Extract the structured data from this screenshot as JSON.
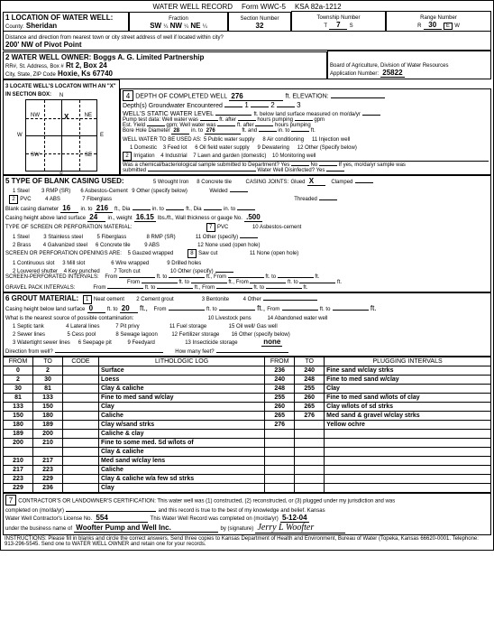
{
  "header": {
    "title": "WATER WELL RECORD",
    "form": "Form WWC-5",
    "ksa": "KSA 82a-1212"
  },
  "loc": {
    "seclabel": "1 LOCATION OF WATER WELL:",
    "countylabel": "County:",
    "county": "Sheridan",
    "fraction": "Fraction",
    "sw": "SW",
    "qtr": "¼",
    "nw": "NW",
    "ne": "NE",
    "secnum": "Section Number",
    "sec": "32",
    "twp": "Township Number",
    "twpT": "T",
    "twpval": "7",
    "twpS": "S",
    "rng": "Range Number",
    "rngR": "R",
    "rngval": "30",
    "ew": "E",
    "w": "W",
    "distlabel": "Distance and direction from nearest town or city street address of well if located within city?",
    "dist": "200' NW of Pivot Point"
  },
  "owner": {
    "hdr": "2 WATER WELL OWNER:",
    "name": "Boggs A. G. Limited Partnership",
    "addrlabel": "RR#, St. Address, Box #",
    "addr": "Rt 2, Box 24",
    "citylabel": "City, State, ZIP Code",
    "city": "Hoxie, Ks 67740",
    "board": "Board of Agriculture, Division of Water Resources",
    "appnum": "Application Number:",
    "app": "25822"
  },
  "loc3": {
    "hdr": "3 LOCATE WELL'S LOCATON WITH AN \"X\" IN SECTION BOX:",
    "n": "N",
    "s": "S",
    "e": "E",
    "wdir": "W",
    "nw": "NW",
    "ne": "NE",
    "sw": "SW",
    "se": "SE",
    "x": "X",
    "mile": "1 mile"
  },
  "sec4": {
    "hdr": "4",
    "depth": "DEPTH OF COMPLETED WELL",
    "depthval": "276",
    "elev": "ft. ELEVATION:",
    "gw": "Depth(s) Groundwater Encountered",
    "static": "WELL'S STATIC WATER LEVEL",
    "belowland": "ft. below land surface measured on mo/da/yr",
    "pump": "Pump test data:",
    "wellwater": "Well water was",
    "ftafter": "ft. after",
    "hours": "hours pumping",
    "gpm": "gpm",
    "est": "Est. Yield",
    "gpmlabel": "gpm;",
    "bore": "Bore Hole Diameter",
    "boreval1": "28",
    "into": "in. to",
    "boreval2": "276",
    "ftand": "ft. and",
    "ft": "ft.",
    "used": "WELL WATER TO BE USED AS:",
    "u1": "1  Domestic",
    "u3": "3  Feed lot",
    "u5": "5  Public water supply",
    "u6": "6  Oil field water supply",
    "u8": "8  Air conditioning",
    "u9": "9  Dewatering",
    "u11": "11  Injection well",
    "u12": "12  Other (Specify below)",
    "u2box": "2",
    "u2": "Irrigation",
    "u4": "4  Industrial",
    "u7": "7  Lawn and garden (domestic)",
    "u10": "10  Monitoring well",
    "chem": "Was a chemical/bacteriological sample submitted to Department?  Yes",
    "no": "No",
    "ifyes": "If yes, mo/da/yr sample was",
    "subm": "submitted",
    "disinfect": "Water Well Disinfected? Yes"
  },
  "sec5": {
    "hdr": "5 TYPE OF BLANK CASING USED:",
    "c1": "1  Steel",
    "c3": "3  RMP (SR)",
    "c5": "5  Wrought Iron",
    "c8": "8  Concrete tile",
    "cj": "CASING JOINTS:",
    "glued": "Glued",
    "gluedX": "X",
    "clamped": "Clamped",
    "c2box": "2",
    "c2": "PVC",
    "c4": "4  ABS",
    "c7": "7  Fiberglass",
    "c6": "6  Asbestos-Cement",
    "c9": "9  Other (specify below)",
    "welded": "Welded",
    "threaded": "Threaded",
    "bcd": "Blank casing diameter",
    "bcd1": "16",
    "bcd2": "216",
    "intoL": "in. to",
    "ftdia": "ft., Dia",
    "into2": "in. to",
    "ftdia2": "ft., Dia",
    "cheight": "Casing height above land surface",
    "cheightval": "24",
    "inweight": "in., weight",
    "weight": "16.15",
    "lbsft": "lbs./ft., Wall thickness or gauge No.",
    "gauge": ".500",
    "perf": "TYPE OF SCREEN OR PERFORATION MATERIAL:",
    "p7box": "7",
    "p7": "PVC",
    "p1": "1  Steel",
    "p3": "3  Stainless steel",
    "p5": "5  Fiberglass",
    "p8": "8  RMP (SR)",
    "p10": "10  Asbestos-cement",
    "p11": "11  Other (specify)",
    "p2": "2  Brass",
    "p4": "4  Galvanized steel",
    "p6": "6  Concrete tile",
    "p9": "9  ABS",
    "p12": "12  None used (open hole)",
    "open": "SCREEN OR PERFORATION OPENINGS ARE:",
    "o1": "1  Continuous slot",
    "o3": "3  Mill slot",
    "o5": "5  Gauzed wrapped",
    "o6": "6  Wire wrapped",
    "o8box": "8",
    "o8": "Saw cut",
    "o9": "9  Drilled holes",
    "o11": "11  None (open hole)",
    "o2": "2  Louvered shutter",
    "o4": "4  Key punched",
    "o7": "7  Torch cut",
    "o10": "10  Other (specify)",
    "spi": "SCREEN-PERFORATED INTERVALS:",
    "from": "From",
    "ftto": "ft. to",
    "ftfrom": "ft., From",
    "gpi": "GRAVEL PACK INTERVALS:"
  },
  "sec6": {
    "hdr": "6 GROUT MATERIAL:",
    "g1box": "1",
    "g1": "Neat cement",
    "g2": "2  Cement grout",
    "g3": "3  Bentonite",
    "g4": "4  Other",
    "chb": "Casing height below land surface",
    "zero": "0",
    "ftto": "ft. to",
    "twenty": "20",
    "contam": "What is the nearest source of possible contamination:",
    "n1": "1  Septic tank",
    "n4": "4  Lateral lines",
    "n7": "7  Pit privy",
    "n10": "10  Livestock pens",
    "n11": "11  Fuel storage",
    "n14": "14  Abandoned water well",
    "n15": "15  Oil well/ Gas well",
    "n2": "2  Sewer lines",
    "n5": "5  Cess pool",
    "n8": "8  Sewage lagoon",
    "n12": "12  Fertilizer storage",
    "n16": "16  Other (specify below)",
    "n3": "3  Watertight sewer lines",
    "n6": "6  Seepage pit",
    "n9": "9  Feedyard",
    "n13": "13  Insecticide storage",
    "none": "none",
    "dir": "Direction from well?",
    "howmany": "How many feet?"
  },
  "log": {
    "hdrs": {
      "from": "FROM",
      "to": "TO",
      "code": "CODE",
      "lith": "LITHOLOGIC LOG",
      "plug": "PLUGGING INTERVALS"
    },
    "rows": [
      {
        "a": "0",
        "b": "2",
        "lith": "Surface",
        "c": "236",
        "d": "240",
        "plug": "Fine sand w/clay strks"
      },
      {
        "a": "2",
        "b": "30",
        "lith": "Loess",
        "c": "240",
        "d": "248",
        "plug": "Fine to med sand w/clay"
      },
      {
        "a": "30",
        "b": "81",
        "lith": "Clay & caliche",
        "c": "248",
        "d": "255",
        "plug": "Clay"
      },
      {
        "a": "81",
        "b": "133",
        "lith": "Fine to med sand w/clay",
        "c": "255",
        "d": "260",
        "plug": "Fine to med sand w/lots of clay"
      },
      {
        "a": "133",
        "b": "150",
        "lith": "Clay",
        "c": "260",
        "d": "265",
        "plug": "Clay w/lots of sd strks"
      },
      {
        "a": "150",
        "b": "180",
        "lith": "Caliche",
        "c": "265",
        "d": "276",
        "plug": "Med sand & gravel w/clay strks"
      },
      {
        "a": "180",
        "b": "189",
        "lith": "Clay w/sand strks",
        "c": "276",
        "d": "",
        "plug": "Yellow ochre"
      },
      {
        "a": "189",
        "b": "200",
        "lith": "Caliche & clay",
        "c": "",
        "d": "",
        "plug": ""
      },
      {
        "a": "200",
        "b": "210",
        "lith": "Fine to some med. Sd w/lots of",
        "c": "",
        "d": "",
        "plug": ""
      },
      {
        "a": "",
        "b": "",
        "lith": "Clay & caliche",
        "c": "",
        "d": "",
        "plug": ""
      },
      {
        "a": "210",
        "b": "217",
        "lith": "Med sand w/clay lens",
        "c": "",
        "d": "",
        "plug": ""
      },
      {
        "a": "217",
        "b": "223",
        "lith": "Caliche",
        "c": "",
        "d": "",
        "plug": ""
      },
      {
        "a": "223",
        "b": "229",
        "lith": "Clay & caliche w/a few sd strks",
        "c": "",
        "d": "",
        "plug": ""
      },
      {
        "a": "229",
        "b": "236",
        "lith": "Clay",
        "c": "",
        "d": "",
        "plug": ""
      }
    ]
  },
  "sec7": {
    "hdr": "7",
    "cert": "CONTRACTOR'S OR LANDOWNER'S CERTIFICATION:  This water well was (1) constructed, (2) reconstructed, or (3) plugged under my jurisdiction and was",
    "completed": "completed on (mo/da/yr)",
    "record": "and this record is true to the best of my knowledge and belief.  Kansas",
    "lic": "Water Well Contractor's License No.",
    "licval": "554",
    "wellrec": "This Water Well Record was completed on (mo/da/yr)",
    "date": "5-12-04",
    "under": "under the business name of",
    "biz": "Woofter Pump and Well Inc.",
    "by": "by (signature)"
  },
  "footer": "INSTRUCTIONS:  Please fill in blanks and circle the correct answers.  Send three copies to Kansas Department of Health and Environment, Bureau of Water (Topeka, Kansas 66620-0001.  Telephone: 913-296-5545.  Send one to WATER WELL OWNER and retain one for your records."
}
